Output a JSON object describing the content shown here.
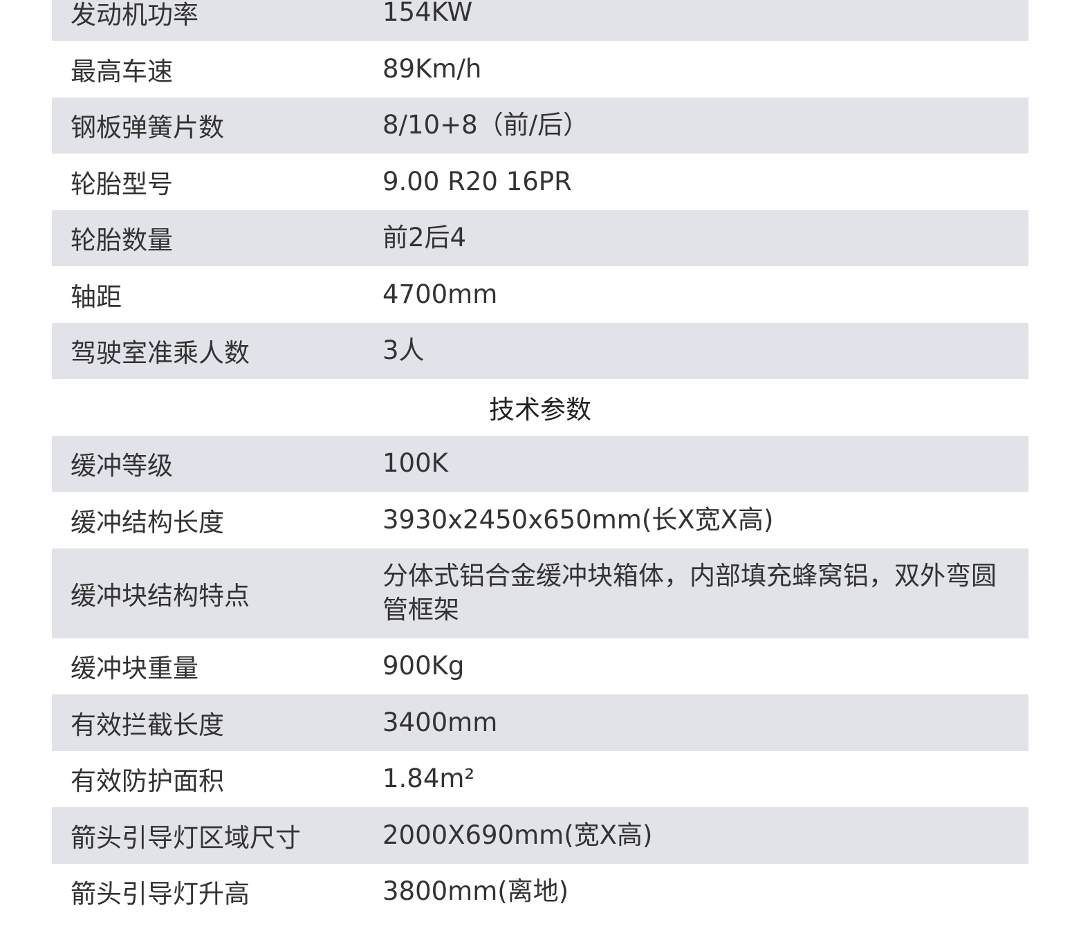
{
  "sections": [
    {
      "rows": [
        [
          "发动机功率",
          "154KW"
        ],
        [
          "最高车速",
          "89Km/h"
        ],
        [
          "钢板弹簧片数",
          "8/10+8（前/后）"
        ],
        [
          "轮胎型号",
          "9.00  R20  16PR"
        ],
        [
          "轮胎数量",
          "前2后4"
        ],
        [
          "轴距",
          "4700mm"
        ],
        [
          "驾驶室准乘人数",
          "3人"
        ]
      ]
    },
    {
      "title": "技术参数",
      "rows": [
        [
          "缓冲等级",
          "100K"
        ],
        [
          "缓冲结构长度",
          "3930x2450x650mm(长X宽X高)"
        ],
        [
          "缓冲块结构特点",
          "分体式铝合金缓冲块箱体，内部填充蜂窝铝，双外弯圆管框架"
        ],
        [
          "缓冲块重量",
          "900Kg"
        ],
        [
          "有效拦截长度",
          "3400mm"
        ],
        [
          "有效防护面积",
          "1.84m²"
        ],
        [
          "箭头引导灯区域尺寸",
          "2000X690mm(宽X高)"
        ],
        [
          "箭头引导灯升高",
          "3800mm(离地)"
        ]
      ]
    }
  ]
}
